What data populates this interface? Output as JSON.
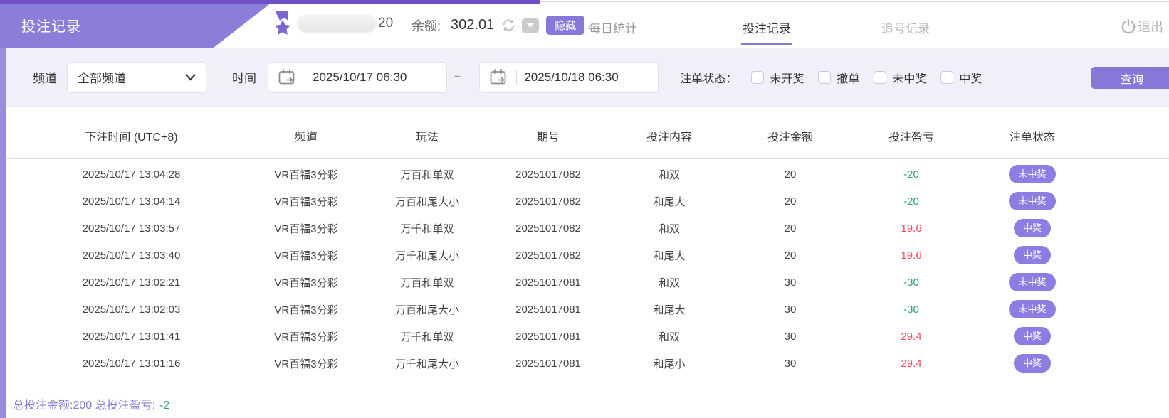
{
  "banner": {
    "title": "投注记录"
  },
  "topbar": {
    "username_visible": "20",
    "balance_label": "余额:",
    "balance_value": "302.01",
    "hide_button": "隐藏",
    "nav": [
      {
        "label": "每日统计",
        "active": false
      },
      {
        "label": "投注记录",
        "active": true
      },
      {
        "label": "追号记录",
        "active": false
      }
    ],
    "logout_label": "退出"
  },
  "filters": {
    "channel_label": "频道",
    "channel_value": "全部频道",
    "time_label": "时间",
    "date_from": "2025/10/17 06:30",
    "range_separator": "~",
    "date_to": "2025/10/18 06:30",
    "status_label": "注单状态：",
    "status_options": [
      "未开奖",
      "撤单",
      "未中奖",
      "中奖"
    ],
    "search_button": "查询"
  },
  "table": {
    "columns": [
      "下注时间 (UTC+8)",
      "频道",
      "玩法",
      "期号",
      "投注内容",
      "投注金额",
      "投注盈亏",
      "注单状态"
    ],
    "rows": [
      {
        "time": "2025/10/17 13:04:28",
        "channel": "VR百福3分彩",
        "play": "万百和单双",
        "period": "20251017082",
        "content": "和双",
        "amount": "20",
        "profit": "-20",
        "profit_type": "negative",
        "status": "未中奖"
      },
      {
        "time": "2025/10/17 13:04:14",
        "channel": "VR百福3分彩",
        "play": "万百和尾大小",
        "period": "20251017082",
        "content": "和尾大",
        "amount": "20",
        "profit": "-20",
        "profit_type": "negative",
        "status": "未中奖"
      },
      {
        "time": "2025/10/17 13:03:57",
        "channel": "VR百福3分彩",
        "play": "万千和单双",
        "period": "20251017082",
        "content": "和双",
        "amount": "20",
        "profit": "19.6",
        "profit_type": "positive",
        "status": "中奖"
      },
      {
        "time": "2025/10/17 13:03:40",
        "channel": "VR百福3分彩",
        "play": "万千和尾大小",
        "period": "20251017082",
        "content": "和尾大",
        "amount": "20",
        "profit": "19.6",
        "profit_type": "positive",
        "status": "中奖"
      },
      {
        "time": "2025/10/17 13:02:21",
        "channel": "VR百福3分彩",
        "play": "万百和单双",
        "period": "20251017081",
        "content": "和双",
        "amount": "30",
        "profit": "-30",
        "profit_type": "negative",
        "status": "未中奖"
      },
      {
        "time": "2025/10/17 13:02:03",
        "channel": "VR百福3分彩",
        "play": "万百和尾大小",
        "period": "20251017081",
        "content": "和尾大",
        "amount": "30",
        "profit": "-30",
        "profit_type": "negative",
        "status": "未中奖"
      },
      {
        "time": "2025/10/17 13:01:41",
        "channel": "VR百福3分彩",
        "play": "万千和单双",
        "period": "20251017081",
        "content": "和双",
        "amount": "30",
        "profit": "29.4",
        "profit_type": "positive",
        "status": "中奖"
      },
      {
        "time": "2025/10/17 13:01:16",
        "channel": "VR百福3分彩",
        "play": "万千和尾大小",
        "period": "20251017081",
        "content": "和尾小",
        "amount": "30",
        "profit": "29.4",
        "profit_type": "positive",
        "status": "中奖"
      }
    ]
  },
  "summary": {
    "text": "总投注金额:200 总投注盈亏:",
    "value": "-2"
  },
  "colors": {
    "accent": "#8678d9",
    "banner": "#8b7ed9",
    "top_accent": "#7050c8",
    "filter_bg": "#f2effa",
    "badge": "#8b7de1",
    "profit_negative": "#2f9e7d",
    "profit_positive": "#ee4e63"
  }
}
